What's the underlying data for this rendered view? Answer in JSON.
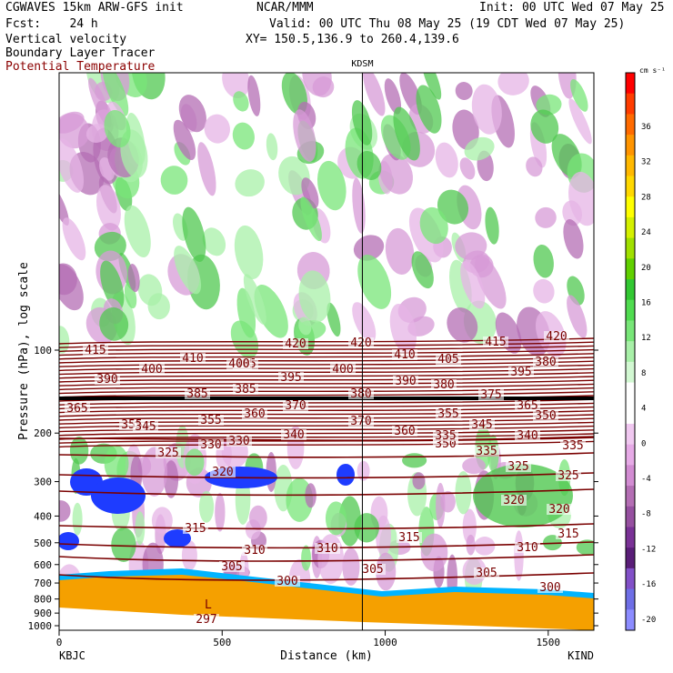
{
  "header": {
    "line1_left": "CGWAVES 15km ARW-GFS init",
    "line1_center": "NCAR/MMM",
    "line1_right": "Init: 00 UTC Wed 07 May 25",
    "line2_left": "Fcst:    24 h",
    "line2_right": "Valid: 00 UTC Thu 08 May 25 (19 CDT Wed 07 May 25)",
    "line3_left": "Vertical velocity",
    "line3_right": "XY= 150.5,136.9 to 260.4,139.6",
    "line4_left": "Boundary Layer Tracer",
    "line5_left": "Potential Temperature"
  },
  "chart_data": {
    "type": "heatmap",
    "title": "",
    "xlabel": "Distance (km)",
    "ylabel": "Pressure (hPa), log scale",
    "x_ticks": [
      0,
      500,
      1000,
      1500
    ],
    "xlim": [
      0,
      1640
    ],
    "y_scale": "log",
    "y_ticks": [
      100,
      200,
      300,
      400,
      500,
      600,
      700,
      800,
      900,
      1000
    ],
    "x_left_label": "KBJC",
    "x_right_label": "KIND",
    "marker_label": "KDSM",
    "marker_x": 930,
    "colorbar": {
      "units": "cm s⁻¹",
      "tick_labels": [
        "36",
        "32",
        "28",
        "24",
        "20",
        "16",
        "12",
        "8",
        "4",
        "0",
        "-4",
        "-8",
        "-12",
        "-16",
        "-20"
      ],
      "colors": [
        "#ff0000",
        "#ff3c00",
        "#ff6a00",
        "#ff9400",
        "#ffb800",
        "#ffd800",
        "#ffff00",
        "#d4f000",
        "#a0e000",
        "#60d000",
        "#32c832",
        "#50dc50",
        "#78e678",
        "#a8f0a8",
        "#d2f8d2",
        "#ffffff",
        "#ffffff",
        "#f0c8f0",
        "#e6aae6",
        "#d28cd2",
        "#b46eb4",
        "#9650a0",
        "#7a3296",
        "#5a1e78",
        "#8250c8",
        "#6e6ee6",
        "#8c8cff"
      ]
    },
    "isentrope_labels": [
      "415",
      "420",
      "420",
      "415",
      "420",
      "410",
      "405",
      "410",
      "405",
      "400",
      "390",
      "400",
      "395",
      "400",
      "390",
      "385",
      "395",
      "380",
      "385",
      "380",
      "375",
      "380",
      "365",
      "370",
      "365",
      "360",
      "355",
      "370",
      "360",
      "355",
      "350",
      "345",
      "355",
      "345",
      "350",
      "340",
      "330",
      "335",
      "340",
      "335",
      "330",
      "335",
      "325",
      "320",
      "325",
      "325",
      "320",
      "320",
      "315",
      "315",
      "315",
      "310",
      "310",
      "310",
      "305",
      "305",
      "305",
      "300",
      "300",
      "297"
    ],
    "low_label": "L"
  }
}
